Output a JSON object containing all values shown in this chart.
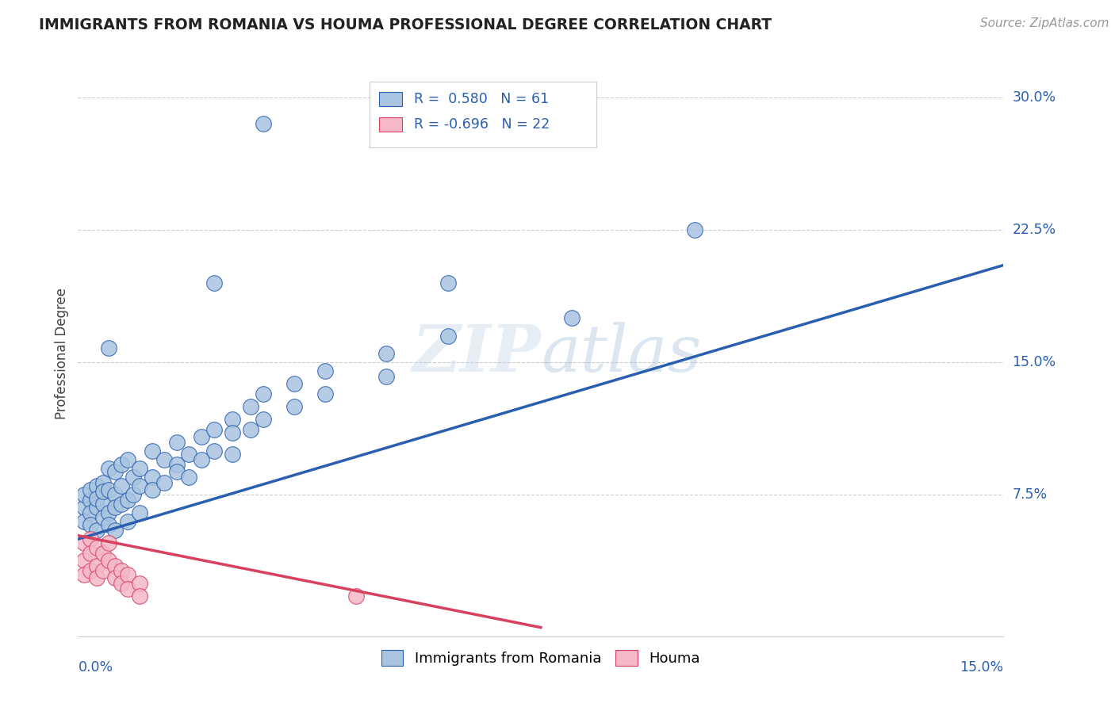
{
  "title": "IMMIGRANTS FROM ROMANIA VS HOUMA PROFESSIONAL DEGREE CORRELATION CHART",
  "source": "Source: ZipAtlas.com",
  "ylabel": "Professional Degree",
  "blue_color": "#a8c4e0",
  "pink_color": "#f4b8c8",
  "line_blue": "#2a5faf",
  "line_pink": "#d84060",
  "watermark": "ZIPatlas",
  "xlim": [
    0.0,
    0.15
  ],
  "ylim": [
    -0.005,
    0.315
  ],
  "ytick_vals": [
    0.075,
    0.15,
    0.225,
    0.3
  ],
  "ytick_labels": [
    "7.5%",
    "15.0%",
    "22.5%",
    "30.0%"
  ],
  "blue_line_x": [
    0.0,
    0.15
  ],
  "blue_line_y": [
    0.05,
    0.205
  ],
  "pink_line_x": [
    0.0,
    0.075
  ],
  "pink_line_y": [
    0.052,
    0.0
  ],
  "blue_scatter": [
    [
      0.001,
      0.068
    ],
    [
      0.001,
      0.075
    ],
    [
      0.001,
      0.06
    ],
    [
      0.002,
      0.072
    ],
    [
      0.002,
      0.065
    ],
    [
      0.002,
      0.078
    ],
    [
      0.002,
      0.058
    ],
    [
      0.003,
      0.08
    ],
    [
      0.003,
      0.068
    ],
    [
      0.003,
      0.055
    ],
    [
      0.003,
      0.073
    ],
    [
      0.004,
      0.082
    ],
    [
      0.004,
      0.07
    ],
    [
      0.004,
      0.062
    ],
    [
      0.004,
      0.077
    ],
    [
      0.005,
      0.09
    ],
    [
      0.005,
      0.078
    ],
    [
      0.005,
      0.065
    ],
    [
      0.005,
      0.058
    ],
    [
      0.006,
      0.088
    ],
    [
      0.006,
      0.075
    ],
    [
      0.006,
      0.068
    ],
    [
      0.006,
      0.055
    ],
    [
      0.007,
      0.092
    ],
    [
      0.007,
      0.08
    ],
    [
      0.007,
      0.07
    ],
    [
      0.008,
      0.095
    ],
    [
      0.008,
      0.072
    ],
    [
      0.008,
      0.06
    ],
    [
      0.009,
      0.085
    ],
    [
      0.009,
      0.075
    ],
    [
      0.01,
      0.09
    ],
    [
      0.01,
      0.08
    ],
    [
      0.01,
      0.065
    ],
    [
      0.012,
      0.1
    ],
    [
      0.012,
      0.085
    ],
    [
      0.012,
      0.078
    ],
    [
      0.014,
      0.095
    ],
    [
      0.014,
      0.082
    ],
    [
      0.016,
      0.105
    ],
    [
      0.016,
      0.092
    ],
    [
      0.016,
      0.088
    ],
    [
      0.018,
      0.098
    ],
    [
      0.018,
      0.085
    ],
    [
      0.02,
      0.108
    ],
    [
      0.02,
      0.095
    ],
    [
      0.022,
      0.112
    ],
    [
      0.022,
      0.1
    ],
    [
      0.025,
      0.118
    ],
    [
      0.025,
      0.11
    ],
    [
      0.025,
      0.098
    ],
    [
      0.028,
      0.125
    ],
    [
      0.028,
      0.112
    ],
    [
      0.03,
      0.132
    ],
    [
      0.03,
      0.118
    ],
    [
      0.035,
      0.138
    ],
    [
      0.035,
      0.125
    ],
    [
      0.04,
      0.145
    ],
    [
      0.04,
      0.132
    ],
    [
      0.05,
      0.155
    ],
    [
      0.05,
      0.142
    ],
    [
      0.06,
      0.165
    ],
    [
      0.1,
      0.225
    ]
  ],
  "blue_outliers": [
    [
      0.03,
      0.285
    ],
    [
      0.022,
      0.195
    ],
    [
      0.005,
      0.158
    ],
    [
      0.08,
      0.175
    ],
    [
      0.06,
      0.195
    ]
  ],
  "pink_scatter": [
    [
      0.001,
      0.048
    ],
    [
      0.001,
      0.038
    ],
    [
      0.001,
      0.03
    ],
    [
      0.002,
      0.05
    ],
    [
      0.002,
      0.042
    ],
    [
      0.002,
      0.032
    ],
    [
      0.003,
      0.045
    ],
    [
      0.003,
      0.035
    ],
    [
      0.003,
      0.028
    ],
    [
      0.004,
      0.042
    ],
    [
      0.004,
      0.032
    ],
    [
      0.005,
      0.038
    ],
    [
      0.005,
      0.048
    ],
    [
      0.006,
      0.035
    ],
    [
      0.006,
      0.028
    ],
    [
      0.007,
      0.032
    ],
    [
      0.007,
      0.025
    ],
    [
      0.008,
      0.03
    ],
    [
      0.008,
      0.022
    ],
    [
      0.01,
      0.025
    ],
    [
      0.01,
      0.018
    ],
    [
      0.045,
      0.018
    ]
  ]
}
